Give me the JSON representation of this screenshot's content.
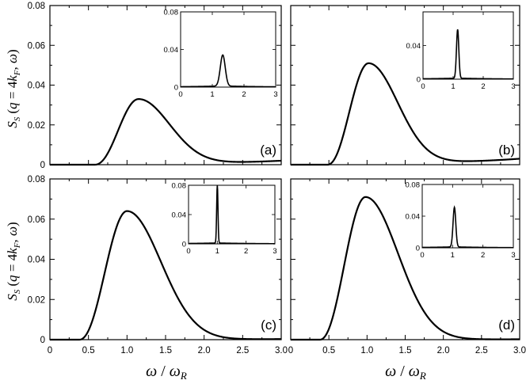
{
  "chart_data": [
    {
      "type": "line",
      "panel": "a",
      "label": "(a)",
      "ylabel": "S_S(q = 4k_F, ω)",
      "ylim": [
        0,
        0.08
      ],
      "xlim": [
        0,
        3.0
      ],
      "yticks": [
        "0",
        "0.02",
        "0.04",
        "0.06",
        "0.08"
      ],
      "peak": {
        "x": 1.15,
        "y": 0.033,
        "onset": 0.58,
        "tail_end": 0.002
      },
      "inset": {
        "xticks": [
          "0",
          "1",
          "2",
          "3"
        ],
        "yticks": [
          "0",
          "0.04",
          "0.08"
        ],
        "peak_x": 1.33,
        "peak_y": 0.033,
        "width": 0.12
      }
    },
    {
      "type": "line",
      "panel": "b",
      "label": "(b)",
      "ylim": [
        0,
        0.08
      ],
      "xlim": [
        0,
        3.0
      ],
      "peak": {
        "x": 1.02,
        "y": 0.051,
        "onset": 0.48,
        "tail_end": 0.003
      },
      "inset": {
        "xticks": [
          "0",
          "1",
          "2",
          "3"
        ],
        "yticks": [
          "0",
          "0.04"
        ],
        "peak_x": 1.15,
        "peak_y": 0.058,
        "width": 0.06
      }
    },
    {
      "type": "line",
      "panel": "c",
      "label": "(c)",
      "ylabel": "S_S(q = 4k_F, ω)",
      "xlabel": "ω / ω_R",
      "ylim": [
        0,
        0.08
      ],
      "xlim": [
        0,
        3.0
      ],
      "yticks": [
        "0",
        "0.02",
        "0.04",
        "0.06",
        "0.08"
      ],
      "xticks": [
        "0",
        "0.5",
        "1.0",
        "1.5",
        "2.0",
        "2.5",
        "3.0"
      ],
      "peak": {
        "x": 1.0,
        "y": 0.064,
        "onset": 0.38,
        "tail_end": 0.0003
      },
      "inset": {
        "xticks": [
          "0",
          "1",
          "2",
          "3"
        ],
        "yticks": [
          "0",
          "0.04",
          "0.08"
        ],
        "peak_x": 1.0,
        "peak_y": 0.08,
        "width": 0.035
      }
    },
    {
      "type": "line",
      "panel": "d",
      "label": "(d)",
      "xlabel": "ω / ω_R",
      "ylim": [
        0,
        0.08
      ],
      "xlim": [
        0,
        3.0
      ],
      "xticks": [
        "0",
        "0.5",
        "1.0",
        "1.5",
        "2.0",
        "2.5",
        "3.0"
      ],
      "peak": {
        "x": 0.98,
        "y": 0.071,
        "onset": 0.38,
        "tail_end": 0.0002
      },
      "inset": {
        "xticks": [
          "0",
          "1",
          "2",
          "3"
        ],
        "yticks": [
          "0",
          "0.04",
          "0.08"
        ],
        "peak_x": 1.06,
        "peak_y": 0.05,
        "width": 0.07
      }
    }
  ]
}
